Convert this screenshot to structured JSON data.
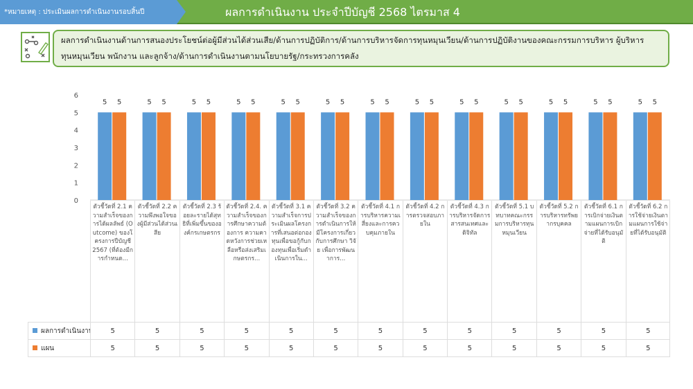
{
  "header": {
    "note": "*หมายเหตุ : ประเมินผลการดำเนินงานรอบสิ้นปี",
    "title": "ผลการดำเนินงาน ประจำปีบัญชี 2568 ไตรมาส 4"
  },
  "description": "ผลการดำเนินงานด้านการสนองประโยชน์ต่อผู้มีส่วนได้ส่วนเสีย/ด้านการปฏิบัติการ/ด้านการบริหารจัดการทุนหมุนเวียน/ด้านการปฏิบัติงานของคณะกรรมการบริหาร ผู้บริหารทุนหมุนเวียน พนักงาน และลูกจ้าง/ด้านการดำเนินงานตามนโยบายรัฐ/กระทรวงการคลัง",
  "colors": {
    "series1": "#5b9bd5",
    "series2": "#ed7d31",
    "header": "#70ad47",
    "note": "#5b9bd5"
  },
  "chart_data": {
    "type": "bar",
    "ylim": [
      0,
      6
    ],
    "yticks": [
      "0",
      "1",
      "2",
      "3",
      "4",
      "5",
      "6"
    ],
    "categories": [
      "ตัวชี้วัดที่ 2.1 ความสำเร็จของการได้ผลลัพธ์ (Outcome) ของโครงการปีบัญชี 2567 (ที่ต้องมีการกำหนด...",
      "ตัวชี้วัดที่ 2.2 ความพึงพอใจของผู้มีส่วนได้ส่วนเสีย",
      "ตัวชี้วัดที่ 2.3 ร้อยละรายได้สุทธิที่เพิ่มขึ้นขององค์กรเกษตรกร",
      "ตัวชี้วัดที่ 2.4. ความสำเร็จของการศึกษาความต้องการ ความคาดหวังการช่วยเหลือหรือส่งเสริมเกษตรกร...",
      "ตัวชี้วัดที่ 3.1 ความสำเร็จการประเมินผลโครงการที่เสนอต่อกองทุนเพื่อขอกู้กับกองทุนเพื่อเริ่มดำเนินการใน...",
      "ตัวชี้วัดที่ 3.2 ความสำเร็จของการดำเนินการให้มีโครงการเกี่ยวกับการศึกษา วิจัย เพื่อการพัฒนาการ...",
      "ตัวชี้วัดที่ 4.1 การบริหารความเสี่ยงและการควบคุมภายใน",
      "ตัวชี้วัดที่ 4.2 การตรวจสอบภายใน",
      "ตัวชี้วัดที่ 4.3 การบริหารจัดการสารสนเทศและดิจิทัล",
      "ตัวชี้วัดที่ 5.1 บทบาทคณะกรรมการบริหารทุนหมุนเวียน",
      "ตัวชี้วัดที่ 5.2 การบริหารทรัพยากรบุคคล",
      "ตัวชี้วัดที่ 6.1 การเบิกจ่ายเงินตามแผนการเบิกจ่ายที่ได้รับอนุมัติ",
      "ตัวชี้วัดที่ 6.2 การใช้จ่ายเงินตามแผนการใช้จ่ายที่ได้รับอนุมัติ"
    ],
    "series": [
      {
        "name": "ผลการดำเนินงาน",
        "values": [
          5,
          5,
          5,
          5,
          5,
          5,
          5,
          5,
          5,
          5,
          5,
          5,
          5
        ]
      },
      {
        "name": "แผน",
        "values": [
          5,
          5,
          5,
          5,
          5,
          5,
          5,
          5,
          5,
          5,
          5,
          5,
          5
        ]
      }
    ],
    "legend": "bottom-table"
  }
}
